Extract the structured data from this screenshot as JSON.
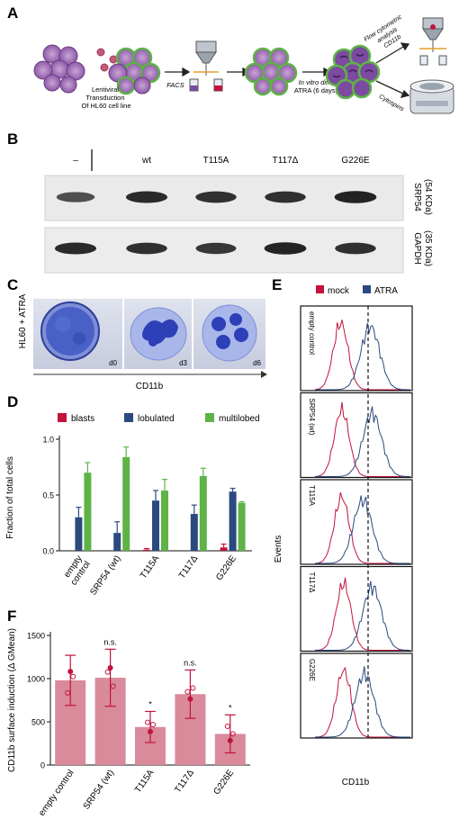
{
  "panels": {
    "A": "A",
    "B": "B",
    "C": "C",
    "D": "D",
    "E": "E",
    "F": "F"
  },
  "panel_a": {
    "transduction_label": [
      "Lentiviral",
      "Transduction",
      "Of HL60 cell line"
    ],
    "facs_label": "FACS",
    "diff_label": [
      "In vitro diff.",
      "ATRA (6 days)"
    ],
    "flow_label": [
      "Flow cytometric",
      "analysis",
      "CD11b"
    ],
    "cytospin_label": "Cytospins"
  },
  "panel_b": {
    "lanes": [
      "–",
      "wt",
      "T115A",
      "T117Δ",
      "G226E"
    ],
    "rows": [
      {
        "protein": "SRP54",
        "size": "(54 KDa)",
        "intensity": [
          0.55,
          0.85,
          0.8,
          0.8,
          0.9
        ]
      },
      {
        "protein": "GAPDH",
        "size": "(35 KDa)",
        "intensity": [
          0.85,
          0.8,
          0.75,
          0.9,
          0.8
        ]
      }
    ]
  },
  "panel_c": {
    "side_label": "HL60 + ATRA",
    "days": [
      "d0",
      "d3",
      "d6"
    ],
    "axis_label": "CD11b"
  },
  "chart_data": [
    {
      "id": "D",
      "type": "bar",
      "ylabel": "Fraction of total cells",
      "ylim": [
        0,
        1.0
      ],
      "yticks": [
        "0.0",
        "0.5",
        "1.0"
      ],
      "categories": [
        "empty control",
        "SRP54 (wt)",
        "T115A",
        "T117Δ",
        "G226E"
      ],
      "category_lines": [
        [
          "empty",
          "control"
        ],
        [
          "SRP54 (wt)"
        ],
        [
          "T115A"
        ],
        [
          "T117Δ"
        ],
        [
          "G226E"
        ]
      ],
      "legend_position": "top",
      "series": [
        {
          "name": "blasts",
          "color": "#c0143c",
          "values": [
            0,
            0,
            0.01,
            0,
            0.03
          ],
          "errors": [
            0,
            0,
            0.01,
            0,
            0.03
          ]
        },
        {
          "name": "lobulated",
          "color": "#2a4a7f",
          "values": [
            0.3,
            0.16,
            0.45,
            0.33,
            0.53
          ],
          "errors": [
            0.09,
            0.1,
            0.09,
            0.08,
            0.03
          ]
        },
        {
          "name": "multilobed",
          "color": "#5db346",
          "values": [
            0.7,
            0.84,
            0.54,
            0.67,
            0.43
          ],
          "errors": [
            0.09,
            0.09,
            0.1,
            0.07,
            0.01
          ]
        }
      ]
    },
    {
      "id": "F",
      "type": "bar",
      "ylabel": "CD11b surface induction (Δ GMean)",
      "ylim": [
        0,
        1500
      ],
      "yticks": [
        "0",
        "500",
        "1000",
        "1500"
      ],
      "categories": [
        "empty control",
        "SRP54 (wt)",
        "T115A",
        "T117Δ",
        "G226E"
      ],
      "values": [
        980,
        1010,
        440,
        820,
        360
      ],
      "errors": [
        290,
        330,
        180,
        280,
        220
      ],
      "annotations": [
        "",
        "n.s.",
        "*",
        "n.s.",
        "*"
      ],
      "bar_color": "#d98a9b",
      "point_color": "#c0143c"
    },
    {
      "id": "E",
      "type": "histogram",
      "xlabel": "CD11b",
      "ylabel": "Events",
      "legend_position": "top",
      "series": [
        {
          "name": "mock",
          "color": "#c0143c"
        },
        {
          "name": "ATRA",
          "color": "#2a4a7f"
        }
      ],
      "panels": [
        "empty control",
        "SRP54 (wt)",
        "T115A",
        "T117Δ",
        "G226E"
      ]
    }
  ]
}
